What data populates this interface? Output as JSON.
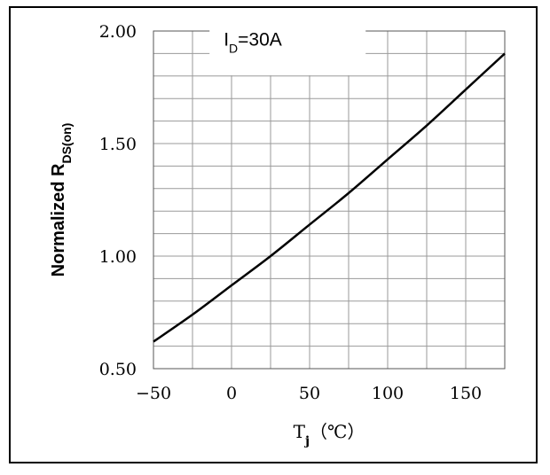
{
  "chart_data": {
    "type": "line",
    "annotation": {
      "main": "I",
      "sub": "D",
      "tail": "=30A"
    },
    "xlabel": {
      "main": "T",
      "sub": "j",
      "tail": "（℃）"
    },
    "ylabel": {
      "main": "Normalized R",
      "sub": "DS(on)"
    },
    "xlim": [
      -50,
      175
    ],
    "ylim": [
      0.5,
      2.0
    ],
    "x_ticks": [
      -50,
      0,
      50,
      100,
      150
    ],
    "x_tick_labels": [
      "−50",
      "0",
      "50",
      "100",
      "150"
    ],
    "y_ticks": [
      0.5,
      1.0,
      1.5,
      2.0
    ],
    "y_tick_labels": [
      "0.50",
      "1.00",
      "1.50",
      "2.00"
    ],
    "x_grid_step": 25,
    "y_grid_step": 0.1,
    "grid": true,
    "legend": "none",
    "series": [
      {
        "color": "#000000",
        "x": [
          -50,
          -25,
          0,
          25,
          50,
          75,
          100,
          125,
          150,
          175
        ],
        "y": [
          0.62,
          0.74,
          0.87,
          1.0,
          1.14,
          1.28,
          1.43,
          1.58,
          1.74,
          1.9
        ]
      }
    ]
  }
}
